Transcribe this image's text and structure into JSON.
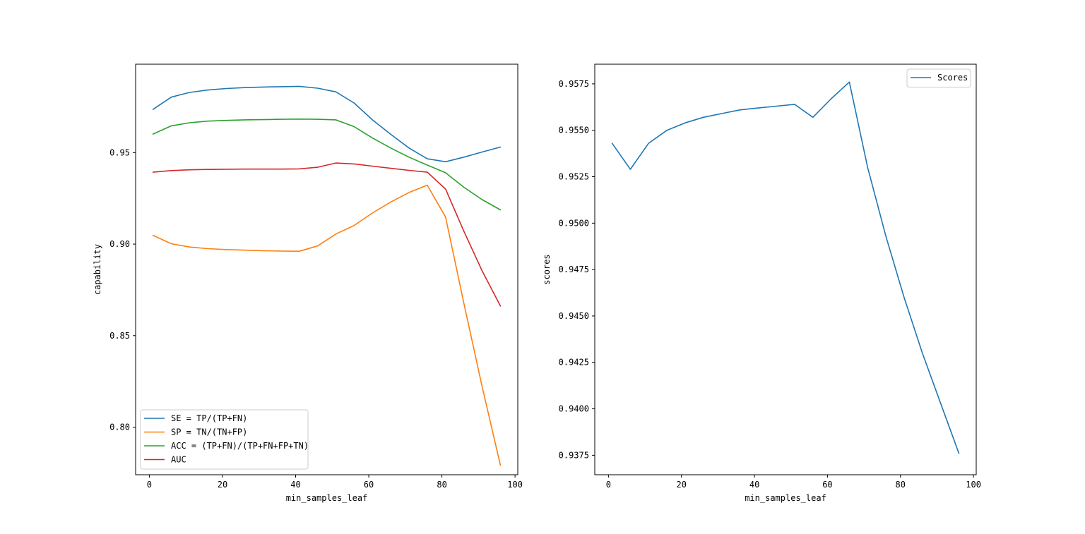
{
  "chart_data": [
    {
      "type": "line",
      "xlabel": "min_samples_leaf",
      "ylabel": "capability",
      "xlim": [
        -3.75,
        100.75
      ],
      "ylim": [
        0.774,
        0.9983
      ],
      "xticks": [
        0,
        20,
        40,
        60,
        80,
        100
      ],
      "yticks": [
        0.8,
        0.85,
        0.9,
        0.95
      ],
      "ytick_labels": [
        "0.80",
        "0.85",
        "0.90",
        "0.95"
      ],
      "grid": false,
      "legend_position": "lower-left",
      "x": [
        1,
        6,
        11,
        16,
        21,
        26,
        31,
        36,
        41,
        46,
        51,
        56,
        61,
        66,
        71,
        76,
        81,
        86,
        91,
        96
      ],
      "series": [
        {
          "name": "SE = TP/(TP+FN)",
          "color": "#1f77b4",
          "values": [
            0.9736,
            0.9803,
            0.9829,
            0.9842,
            0.985,
            0.9855,
            0.9858,
            0.986,
            0.9862,
            0.9852,
            0.9832,
            0.9771,
            0.9679,
            0.96,
            0.9525,
            0.9466,
            0.945,
            0.9475,
            0.9503,
            0.953
          ]
        },
        {
          "name": "SP = TN/(TN+FP)",
          "color": "#ff7f0e",
          "values": [
            0.9048,
            0.9002,
            0.8984,
            0.8975,
            0.897,
            0.8967,
            0.8964,
            0.8962,
            0.8961,
            0.899,
            0.9055,
            0.9102,
            0.917,
            0.923,
            0.9282,
            0.9322,
            0.9148,
            0.8678,
            0.8222,
            0.7792
          ]
        },
        {
          "name": "ACC = (TP+FN)/(TP+FN+FP+TN)",
          "color": "#2ca02c",
          "values": [
            0.9601,
            0.9646,
            0.9663,
            0.9672,
            0.9676,
            0.9679,
            0.968,
            0.9682,
            0.9683,
            0.9682,
            0.9679,
            0.9642,
            0.958,
            0.9525,
            0.9475,
            0.9432,
            0.939,
            0.9311,
            0.9243,
            0.9187
          ]
        },
        {
          "name": "AUC",
          "color": "#d62728",
          "values": [
            0.9393,
            0.9402,
            0.9406,
            0.9408,
            0.9409,
            0.941,
            0.941,
            0.941,
            0.9411,
            0.942,
            0.9443,
            0.9438,
            0.9426,
            0.9414,
            0.9403,
            0.9393,
            0.9301,
            0.9071,
            0.8854,
            0.8662
          ]
        }
      ]
    },
    {
      "type": "line",
      "xlabel": "min_samples_leaf",
      "ylabel": "scores",
      "xlim": [
        -3.75,
        100.75
      ],
      "ylim": [
        0.93645,
        0.95856
      ],
      "xticks": [
        0,
        20,
        40,
        60,
        80,
        100
      ],
      "yticks": [
        0.9375,
        0.94,
        0.9425,
        0.945,
        0.9475,
        0.95,
        0.9525,
        0.955,
        0.9575
      ],
      "ytick_labels": [
        "0.9375",
        "0.9400",
        "0.9425",
        "0.9450",
        "0.9475",
        "0.9500",
        "0.9525",
        "0.9550",
        "0.9575"
      ],
      "grid": false,
      "legend_position": "top-right",
      "x": [
        1,
        6,
        11,
        16,
        21,
        26,
        31,
        36,
        41,
        46,
        51,
        56,
        61,
        66,
        71,
        76,
        81,
        86,
        91,
        96
      ],
      "series": [
        {
          "name": "Scores",
          "color": "#1f77b4",
          "values": [
            0.9543,
            0.9529,
            0.9543,
            0.955,
            0.9554,
            0.9557,
            0.9559,
            0.9561,
            0.9562,
            0.9563,
            0.9564,
            0.9557,
            0.9567,
            0.9576,
            0.953,
            0.9493,
            0.946,
            0.943,
            0.9403,
            0.9376
          ]
        }
      ]
    }
  ]
}
